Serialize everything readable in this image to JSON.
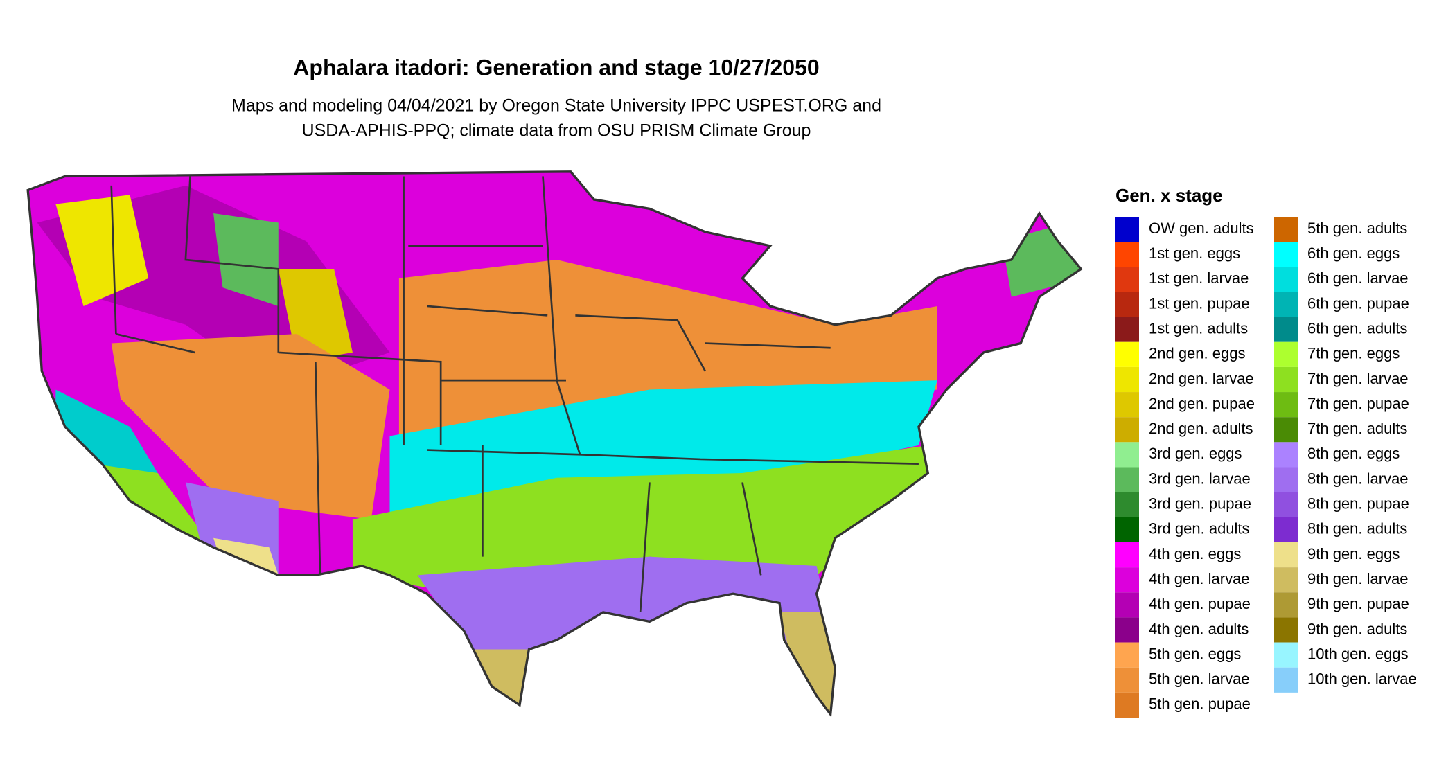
{
  "title": "Aphalara itadori: Generation and stage 10/27/2050",
  "subtitle": [
    "Maps and modeling 04/04/2021 by Oregon State University IPPC USPEST.ORG and",
    "USDA-APHIS-PPQ; climate data from OSU PRISM Climate Group"
  ],
  "legend": {
    "title": "Gen. x stage",
    "items": [
      {
        "label": "OW gen. adults",
        "color": "#0000cd"
      },
      {
        "label": "1st gen. eggs",
        "color": "#ff4500"
      },
      {
        "label": "1st gen. larvae",
        "color": "#e0380f"
      },
      {
        "label": "1st gen. pupae",
        "color": "#b8280f"
      },
      {
        "label": "1st gen. adults",
        "color": "#8b1a1a"
      },
      {
        "label": "2nd gen. eggs",
        "color": "#ffff00"
      },
      {
        "label": "2nd gen. larvae",
        "color": "#eee600"
      },
      {
        "label": "2nd gen. pupae",
        "color": "#dec800"
      },
      {
        "label": "2nd gen. adults",
        "color": "#cdad00"
      },
      {
        "label": "3rd gen. eggs",
        "color": "#90ee90"
      },
      {
        "label": "3rd gen. larvae",
        "color": "#5cba5c"
      },
      {
        "label": "3rd gen. pupae",
        "color": "#2e8b2e"
      },
      {
        "label": "3rd gen. adults",
        "color": "#006400"
      },
      {
        "label": "4th gen. eggs",
        "color": "#ff00ff"
      },
      {
        "label": "4th gen. larvae",
        "color": "#dc00dc"
      },
      {
        "label": "4th gen. pupae",
        "color": "#b400b4"
      },
      {
        "label": "4th gen. adults",
        "color": "#8b008b"
      },
      {
        "label": "5th gen. eggs",
        "color": "#ffa54f"
      },
      {
        "label": "5th gen. larvae",
        "color": "#ee9038"
      },
      {
        "label": "5th gen. pupae",
        "color": "#de7a22"
      },
      {
        "label": "5th gen. adults",
        "color": "#cd6600"
      },
      {
        "label": "6th gen. eggs",
        "color": "#00ffff"
      },
      {
        "label": "6th gen. larvae",
        "color": "#00dede"
      },
      {
        "label": "6th gen. pupae",
        "color": "#00b4b4"
      },
      {
        "label": "6th gen. adults",
        "color": "#008b8b"
      },
      {
        "label": "7th gen. eggs",
        "color": "#adff2f"
      },
      {
        "label": "7th gen. larvae",
        "color": "#8ee020"
      },
      {
        "label": "7th gen. pupae",
        "color": "#6ebc12"
      },
      {
        "label": "7th gen. adults",
        "color": "#4a8b05"
      },
      {
        "label": "8th gen. eggs",
        "color": "#ab82ff"
      },
      {
        "label": "8th gen. larvae",
        "color": "#9f6ef0"
      },
      {
        "label": "8th gen. pupae",
        "color": "#9050e0"
      },
      {
        "label": "8th gen. adults",
        "color": "#7d2cd0"
      },
      {
        "label": "9th gen. eggs",
        "color": "#eee08a"
      },
      {
        "label": "9th gen. larvae",
        "color": "#cfbc60"
      },
      {
        "label": "9th gen. pupae",
        "color": "#ae9a34"
      },
      {
        "label": "9th gen. adults",
        "color": "#8b7500"
      },
      {
        "label": "10th gen. eggs",
        "color": "#98f5ff"
      },
      {
        "label": "10th gen. larvae",
        "color": "#87cefa"
      }
    ]
  }
}
